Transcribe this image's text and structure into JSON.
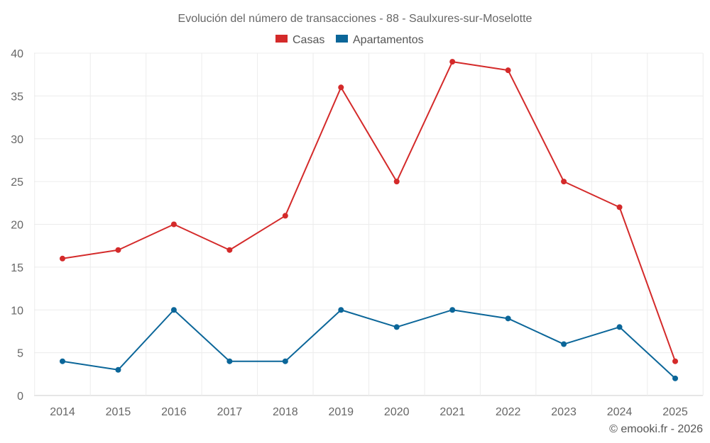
{
  "chart_data": {
    "type": "line",
    "title": "Evolución del número de transacciones - 88 - Saulxures-sur-Moselotte",
    "categories": [
      "2014",
      "2015",
      "2016",
      "2017",
      "2018",
      "2019",
      "2020",
      "2021",
      "2022",
      "2023",
      "2024",
      "2025"
    ],
    "series": [
      {
        "name": "Casas",
        "color": "#d42a2a",
        "values": [
          16,
          17,
          20,
          17,
          21,
          36,
          25,
          39,
          38,
          25,
          22,
          4
        ]
      },
      {
        "name": "Apartamentos",
        "color": "#0b6699",
        "values": [
          4,
          3,
          10,
          4,
          4,
          10,
          8,
          10,
          9,
          6,
          8,
          2
        ]
      }
    ],
    "ylim": [
      0,
      40
    ],
    "yticks": [
      0,
      5,
      10,
      15,
      20,
      25,
      30,
      35,
      40
    ],
    "legend_position": "top-center",
    "grid": true,
    "xlabel": "",
    "ylabel": ""
  },
  "credit": "© emooki.fr - 2026"
}
